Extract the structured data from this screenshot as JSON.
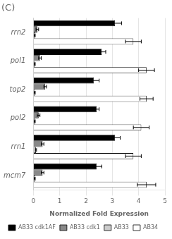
{
  "chart_data": {
    "type": "bar",
    "orientation": "horizontal",
    "title": "(C)",
    "xlabel": "Normalized Fold Expression",
    "categories": [
      "rrn2",
      "pol1",
      "top2",
      "pol2",
      "rrn1",
      "mcm7"
    ],
    "series": [
      {
        "name": "AB33 cdk1AF",
        "color": "#000000",
        "values": [
          3.1,
          2.6,
          2.3,
          2.4,
          3.1,
          2.4
        ],
        "errors": [
          0.25,
          0.15,
          0.2,
          0.1,
          0.2,
          0.2
        ]
      },
      {
        "name": "AB33 cdk1",
        "color": "#888888",
        "values": [
          0.15,
          0.25,
          0.45,
          0.2,
          0.35,
          0.35
        ],
        "errors": [
          0.05,
          0.05,
          0.05,
          0.05,
          0.05,
          0.05
        ]
      },
      {
        "name": "AB33",
        "color": "#cccccc",
        "values": [
          0.05,
          0.05,
          0.05,
          0.05,
          0.1,
          0.05
        ],
        "errors": [
          0.02,
          0.02,
          0.02,
          0.02,
          0.02,
          0.02
        ]
      },
      {
        "name": "AB34",
        "color": "#ffffff",
        "values": [
          3.8,
          4.3,
          4.3,
          4.1,
          3.8,
          4.3
        ],
        "errors": [
          0.3,
          0.3,
          0.25,
          0.3,
          0.3,
          0.35
        ]
      }
    ],
    "xlim": [
      0,
      5
    ],
    "xticks": [
      0,
      1,
      2,
      3,
      4,
      5
    ],
    "grid": true,
    "legend": "bottom"
  }
}
